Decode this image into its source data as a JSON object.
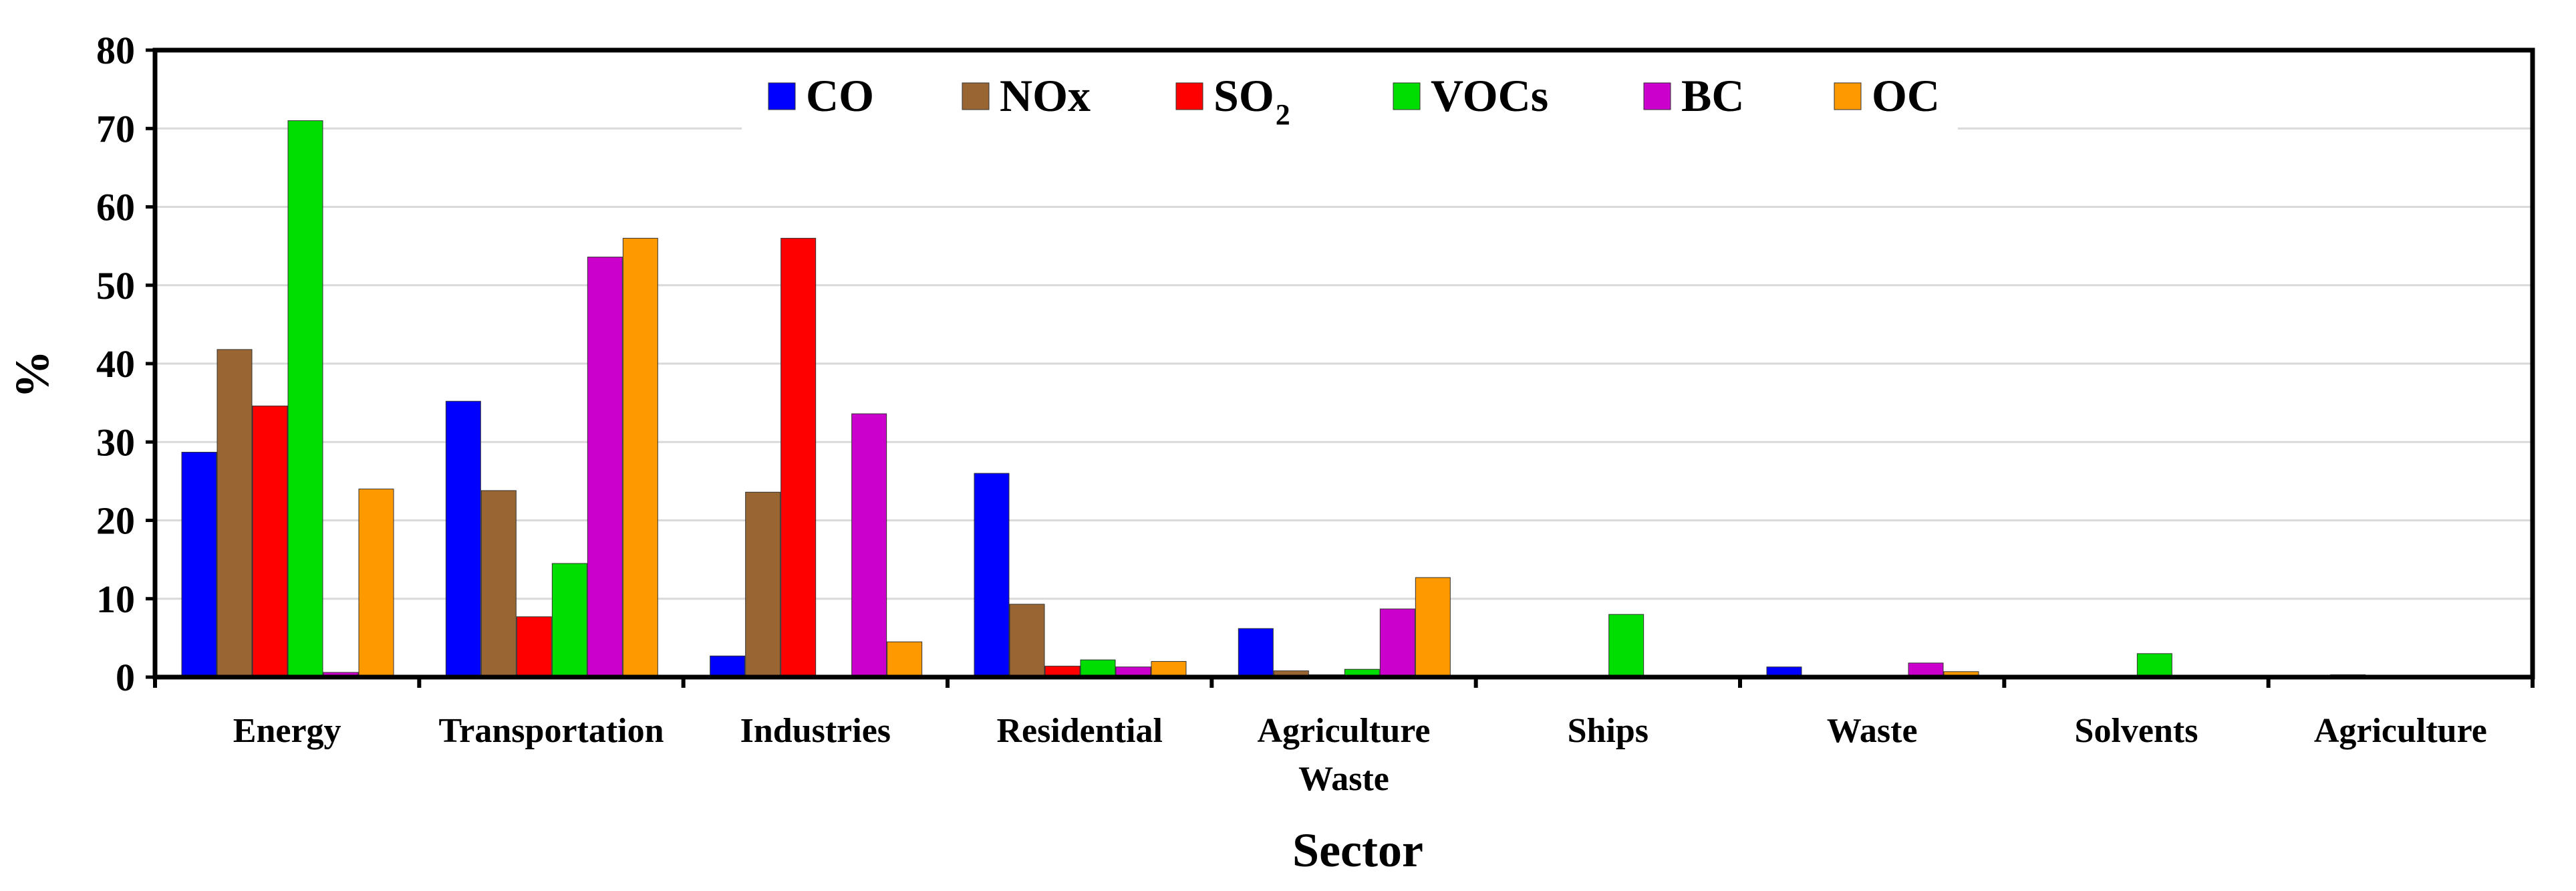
{
  "chart_data": {
    "type": "bar",
    "title": "",
    "xlabel": "Sector",
    "ylabel": "%",
    "ylim": [
      0,
      80
    ],
    "yticks": [
      0,
      10,
      20,
      30,
      40,
      50,
      60,
      70,
      80
    ],
    "grid": true,
    "legend_position": "top",
    "categories": [
      [
        "Energy"
      ],
      [
        "Transportation"
      ],
      [
        "Industries"
      ],
      [
        "Residential"
      ],
      [
        "Agriculture",
        "Waste"
      ],
      [
        "Ships"
      ],
      [
        "Waste"
      ],
      [
        "Solvents"
      ],
      [
        "Agriculture"
      ]
    ],
    "series": [
      {
        "name": "CO",
        "name_sub": "",
        "color": "#0000ff",
        "values": [
          28.7,
          35.2,
          2.7,
          26.0,
          6.2,
          0.0,
          1.3,
          0.0,
          0.0
        ]
      },
      {
        "name": "NOx",
        "name_sub": "",
        "color": "#996633",
        "values": [
          41.8,
          23.8,
          23.6,
          9.3,
          0.8,
          0.0,
          0.0,
          0.0,
          0.3
        ]
      },
      {
        "name": "SO",
        "name_sub": "2",
        "color": "#ff0000",
        "values": [
          34.6,
          7.7,
          56.0,
          1.4,
          0.3,
          0.0,
          0.0,
          0.0,
          0.0
        ]
      },
      {
        "name": "VOCs",
        "name_sub": "",
        "color": "#00dd00",
        "values": [
          71.0,
          14.5,
          0.0,
          2.2,
          1.0,
          8.0,
          0.0,
          3.0,
          0.0
        ]
      },
      {
        "name": "BC",
        "name_sub": "",
        "color": "#cc00cc",
        "values": [
          0.6,
          53.6,
          33.6,
          1.3,
          8.7,
          0.0,
          1.8,
          0.0,
          0.0
        ]
      },
      {
        "name": "OC",
        "name_sub": "",
        "color": "#ff9900",
        "values": [
          24.0,
          56.0,
          4.5,
          2.0,
          12.7,
          0.0,
          0.7,
          0.0,
          0.0
        ]
      }
    ]
  }
}
